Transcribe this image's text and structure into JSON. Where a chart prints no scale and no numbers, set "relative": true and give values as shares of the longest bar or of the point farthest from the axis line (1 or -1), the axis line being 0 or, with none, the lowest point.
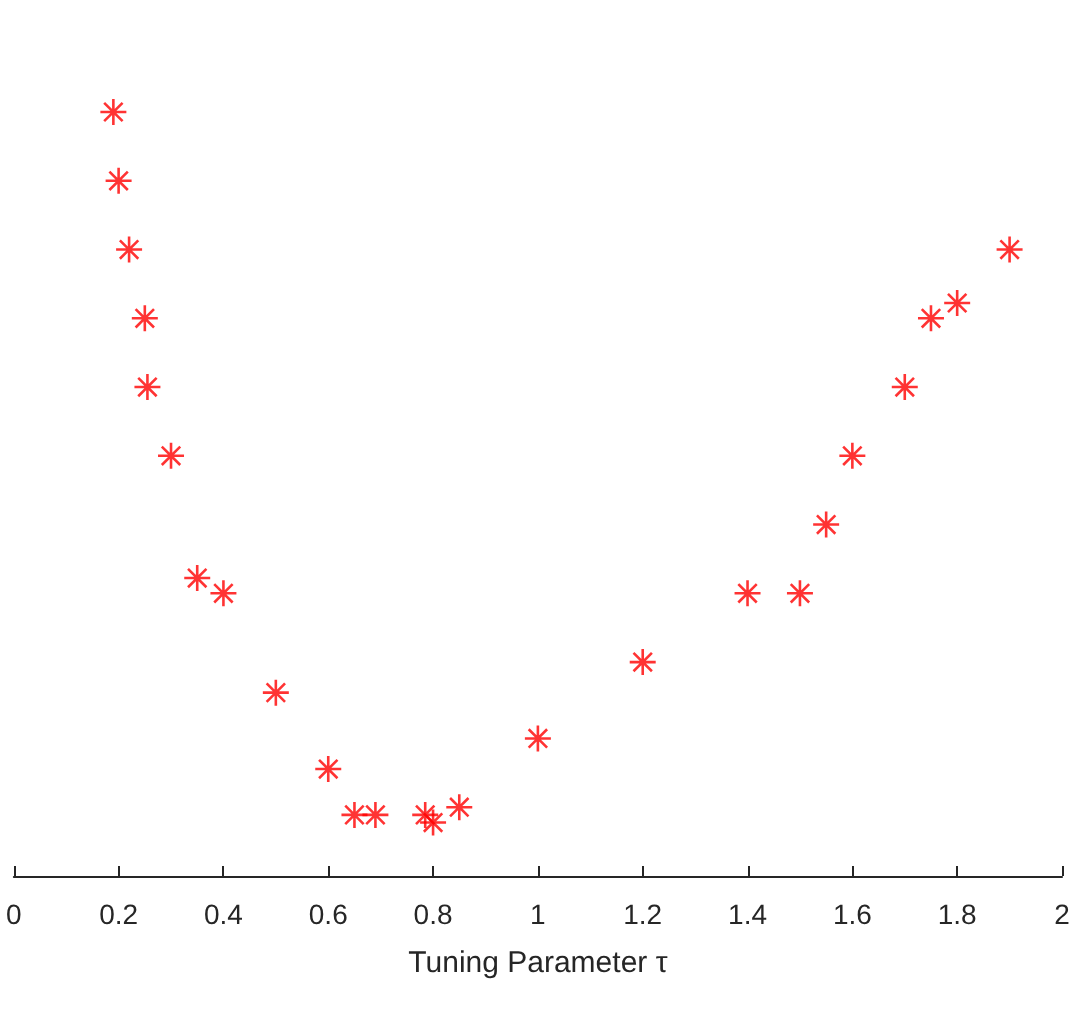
{
  "chart_data": {
    "type": "scatter",
    "xlabel": "Tuning Parameter τ",
    "relative": true,
    "x": [
      0.19,
      0.2,
      0.22,
      0.25,
      0.255,
      0.3,
      0.35,
      0.4,
      0.5,
      0.6,
      0.65,
      0.69,
      0.785,
      0.8,
      0.85,
      1.0,
      1.2,
      1.4,
      1.5,
      1.55,
      1.6,
      1.7,
      1.75,
      1.8,
      1.9
    ],
    "series": [
      {
        "color": "#ff0000",
        "values": [
          1.0,
          0.91,
          0.82,
          0.73,
          0.64,
          0.55,
          0.39,
          0.37,
          0.24,
          0.14,
          0.08,
          0.08,
          0.08,
          0.07,
          0.09,
          0.18,
          0.28,
          0.37,
          0.37,
          0.46,
          0.55,
          0.64,
          0.73,
          0.75,
          0.82
        ]
      }
    ],
    "xlim": [
      0,
      2
    ],
    "xticks": [
      0,
      0.2,
      0.4,
      0.6,
      0.8,
      1,
      1.2,
      1.4,
      1.6,
      1.8,
      2
    ],
    "marker": "cross"
  }
}
